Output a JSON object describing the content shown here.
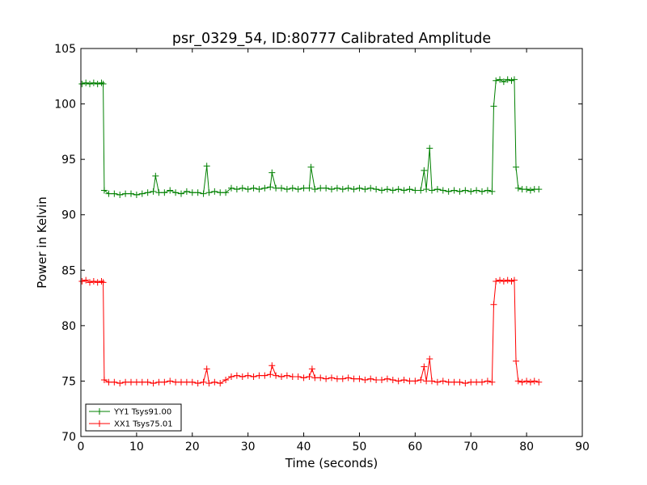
{
  "chart_data": {
    "type": "line",
    "title": "psr_0329_54, ID:80777 Calibrated Amplitude",
    "xlabel": "Time (seconds)",
    "ylabel": "Power in Kelvin",
    "xlim": [
      0,
      90
    ],
    "ylim": [
      70,
      105
    ],
    "xticks": [
      "0",
      "10",
      "20",
      "30",
      "40",
      "50",
      "60",
      "70",
      "80",
      "90"
    ],
    "yticks": [
      "70",
      "75",
      "80",
      "85",
      "90",
      "95",
      "100",
      "105"
    ],
    "grid": false,
    "legend_position": "lower-left",
    "series": [
      {
        "name": "YY1 Tsys91.00",
        "color": "#008000",
        "marker": "plus",
        "points": [
          [
            0.2,
            101.8
          ],
          [
            0.9,
            101.9
          ],
          [
            1.6,
            101.8
          ],
          [
            2.3,
            101.9
          ],
          [
            3.0,
            101.8
          ],
          [
            3.7,
            101.9
          ],
          [
            4.0,
            101.8
          ],
          [
            4.2,
            92.2
          ],
          [
            5.0,
            91.9
          ],
          [
            6.0,
            91.9
          ],
          [
            7.0,
            91.8
          ],
          [
            8.0,
            91.9
          ],
          [
            9.0,
            91.9
          ],
          [
            10.0,
            91.8
          ],
          [
            11.0,
            91.9
          ],
          [
            12.0,
            92.0
          ],
          [
            13.0,
            92.1
          ],
          [
            13.4,
            93.5
          ],
          [
            14.0,
            92.0
          ],
          [
            15.0,
            92.0
          ],
          [
            16.0,
            92.2
          ],
          [
            17.0,
            92.0
          ],
          [
            18.0,
            91.9
          ],
          [
            19.0,
            92.1
          ],
          [
            20.0,
            92.0
          ],
          [
            21.0,
            92.0
          ],
          [
            22.0,
            91.9
          ],
          [
            22.6,
            94.4
          ],
          [
            23.0,
            92.0
          ],
          [
            24.0,
            92.1
          ],
          [
            25.0,
            92.0
          ],
          [
            26.0,
            92.0
          ],
          [
            27.0,
            92.4
          ],
          [
            28.0,
            92.3
          ],
          [
            29.0,
            92.4
          ],
          [
            30.0,
            92.3
          ],
          [
            31.0,
            92.4
          ],
          [
            32.0,
            92.3
          ],
          [
            33.0,
            92.4
          ],
          [
            34.0,
            92.5
          ],
          [
            34.3,
            93.8
          ],
          [
            35.0,
            92.4
          ],
          [
            36.0,
            92.4
          ],
          [
            37.0,
            92.3
          ],
          [
            38.0,
            92.4
          ],
          [
            39.0,
            92.3
          ],
          [
            40.0,
            92.4
          ],
          [
            41.0,
            92.4
          ],
          [
            41.3,
            94.3
          ],
          [
            42.0,
            92.3
          ],
          [
            43.0,
            92.4
          ],
          [
            44.0,
            92.4
          ],
          [
            45.0,
            92.3
          ],
          [
            46.0,
            92.4
          ],
          [
            47.0,
            92.3
          ],
          [
            48.0,
            92.4
          ],
          [
            49.0,
            92.3
          ],
          [
            50.0,
            92.4
          ],
          [
            51.0,
            92.3
          ],
          [
            52.0,
            92.4
          ],
          [
            53.0,
            92.3
          ],
          [
            54.0,
            92.2
          ],
          [
            55.0,
            92.3
          ],
          [
            56.0,
            92.2
          ],
          [
            57.0,
            92.3
          ],
          [
            58.0,
            92.2
          ],
          [
            59.0,
            92.3
          ],
          [
            60.0,
            92.2
          ],
          [
            61.0,
            92.2
          ],
          [
            61.6,
            94.0
          ],
          [
            62.0,
            92.3
          ],
          [
            62.6,
            96.0
          ],
          [
            63.0,
            92.2
          ],
          [
            64.0,
            92.3
          ],
          [
            65.0,
            92.2
          ],
          [
            66.0,
            92.1
          ],
          [
            67.0,
            92.2
          ],
          [
            68.0,
            92.1
          ],
          [
            69.0,
            92.2
          ],
          [
            70.0,
            92.1
          ],
          [
            71.0,
            92.2
          ],
          [
            72.0,
            92.1
          ],
          [
            73.0,
            92.2
          ],
          [
            73.8,
            92.1
          ],
          [
            74.1,
            99.8
          ],
          [
            74.5,
            102.1
          ],
          [
            75.2,
            102.2
          ],
          [
            75.9,
            102.0
          ],
          [
            76.6,
            102.2
          ],
          [
            77.3,
            102.1
          ],
          [
            77.8,
            102.2
          ],
          [
            78.1,
            94.3
          ],
          [
            78.5,
            92.4
          ],
          [
            79.2,
            92.3
          ],
          [
            80.0,
            92.3
          ],
          [
            80.7,
            92.2
          ],
          [
            81.4,
            92.3
          ],
          [
            82.2,
            92.3
          ]
        ]
      },
      {
        "name": "XX1 Tsys75.01",
        "color": "#ff0000",
        "marker": "plus",
        "points": [
          [
            0.2,
            84.0
          ],
          [
            0.9,
            84.1
          ],
          [
            1.6,
            83.9
          ],
          [
            2.3,
            84.0
          ],
          [
            3.0,
            83.9
          ],
          [
            3.7,
            84.0
          ],
          [
            4.0,
            83.9
          ],
          [
            4.2,
            75.1
          ],
          [
            5.0,
            74.9
          ],
          [
            6.0,
            74.9
          ],
          [
            7.0,
            74.8
          ],
          [
            8.0,
            74.9
          ],
          [
            9.0,
            74.9
          ],
          [
            10.0,
            74.9
          ],
          [
            11.0,
            74.9
          ],
          [
            12.0,
            74.9
          ],
          [
            13.0,
            74.8
          ],
          [
            14.0,
            74.9
          ],
          [
            15.0,
            74.9
          ],
          [
            16.0,
            75.0
          ],
          [
            17.0,
            74.9
          ],
          [
            18.0,
            74.9
          ],
          [
            19.0,
            74.9
          ],
          [
            20.0,
            74.9
          ],
          [
            21.0,
            74.8
          ],
          [
            22.0,
            74.9
          ],
          [
            22.6,
            76.1
          ],
          [
            23.0,
            74.8
          ],
          [
            24.0,
            74.9
          ],
          [
            25.0,
            74.8
          ],
          [
            26.0,
            75.1
          ],
          [
            27.0,
            75.4
          ],
          [
            28.0,
            75.5
          ],
          [
            29.0,
            75.4
          ],
          [
            30.0,
            75.5
          ],
          [
            31.0,
            75.4
          ],
          [
            32.0,
            75.5
          ],
          [
            33.0,
            75.5
          ],
          [
            34.0,
            75.6
          ],
          [
            34.3,
            76.4
          ],
          [
            35.0,
            75.5
          ],
          [
            36.0,
            75.4
          ],
          [
            37.0,
            75.5
          ],
          [
            38.0,
            75.4
          ],
          [
            39.0,
            75.4
          ],
          [
            40.0,
            75.3
          ],
          [
            41.0,
            75.4
          ],
          [
            41.5,
            76.1
          ],
          [
            42.0,
            75.3
          ],
          [
            43.0,
            75.3
          ],
          [
            44.0,
            75.2
          ],
          [
            45.0,
            75.3
          ],
          [
            46.0,
            75.2
          ],
          [
            47.0,
            75.2
          ],
          [
            48.0,
            75.3
          ],
          [
            49.0,
            75.2
          ],
          [
            50.0,
            75.2
          ],
          [
            51.0,
            75.1
          ],
          [
            52.0,
            75.2
          ],
          [
            53.0,
            75.1
          ],
          [
            54.0,
            75.1
          ],
          [
            55.0,
            75.2
          ],
          [
            56.0,
            75.1
          ],
          [
            57.0,
            75.0
          ],
          [
            58.0,
            75.1
          ],
          [
            59.0,
            75.0
          ],
          [
            60.0,
            75.0
          ],
          [
            61.0,
            75.1
          ],
          [
            61.6,
            76.3
          ],
          [
            62.0,
            75.0
          ],
          [
            62.6,
            77.0
          ],
          [
            63.0,
            75.0
          ],
          [
            64.0,
            74.9
          ],
          [
            65.0,
            75.0
          ],
          [
            66.0,
            74.9
          ],
          [
            67.0,
            74.9
          ],
          [
            68.0,
            74.9
          ],
          [
            69.0,
            74.8
          ],
          [
            70.0,
            74.9
          ],
          [
            71.0,
            74.9
          ],
          [
            72.0,
            74.9
          ],
          [
            73.0,
            75.0
          ],
          [
            73.8,
            74.9
          ],
          [
            74.1,
            81.9
          ],
          [
            74.5,
            84.0
          ],
          [
            75.2,
            84.1
          ],
          [
            75.9,
            84.0
          ],
          [
            76.6,
            84.1
          ],
          [
            77.3,
            84.0
          ],
          [
            77.8,
            84.1
          ],
          [
            78.1,
            76.8
          ],
          [
            78.5,
            75.0
          ],
          [
            79.2,
            74.9
          ],
          [
            80.0,
            75.0
          ],
          [
            80.7,
            74.9
          ],
          [
            81.4,
            75.0
          ],
          [
            82.2,
            74.9
          ]
        ]
      }
    ]
  }
}
